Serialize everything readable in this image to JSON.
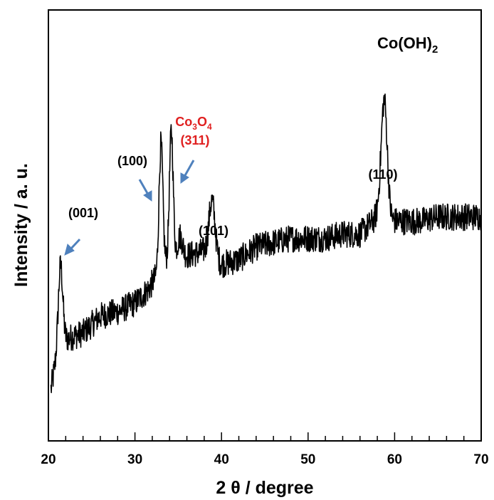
{
  "chart_data": {
    "type": "line",
    "title": "Co(OH)",
    "title_subscript": "2",
    "xlabel": "2 θ / degree",
    "ylabel": "Intensity / a. u.",
    "xlim": [
      20,
      70
    ],
    "ylim": [
      0,
      100
    ],
    "xticks": [
      20,
      30,
      40,
      50,
      60,
      70
    ],
    "xtick_labels": [
      "20",
      "30",
      "40",
      "50",
      "60",
      "70"
    ],
    "minor_xtick_step": 2,
    "y_tick_labels_shown": false,
    "grid": false,
    "legend": "none",
    "line_color": "#000000",
    "baseline_x": [
      20.3,
      21.0,
      21.7,
      22.5,
      24,
      26,
      28,
      30,
      31.5,
      32.4,
      33.4,
      34.5,
      36,
      38,
      40,
      42,
      44,
      46,
      48,
      50,
      52,
      54,
      56,
      57.5,
      58.2,
      59.5,
      61,
      63,
      65,
      67,
      69,
      70
    ],
    "baseline_y": [
      12,
      20,
      23,
      24,
      25,
      29,
      30,
      32,
      35,
      38,
      41,
      42,
      43,
      44,
      41,
      42,
      45,
      46,
      47,
      47,
      47,
      48,
      48,
      51,
      53,
      51,
      51,
      51,
      52,
      52,
      52,
      52
    ],
    "peaks": [
      {
        "x": 21.4,
        "height": 19,
        "width": 0.25
      },
      {
        "x": 33.0,
        "height": 29,
        "width": 0.22
      },
      {
        "x": 34.2,
        "height": 30,
        "width": 0.22
      },
      {
        "x": 35.2,
        "height": 5,
        "width": 0.3
      },
      {
        "x": 38.9,
        "height": 13,
        "width": 0.35
      },
      {
        "x": 58.8,
        "height": 27,
        "width": 0.35
      }
    ],
    "noise_amplitude": 3.2,
    "annotations": [
      {
        "label": "(001)",
        "x": 21.4,
        "color": "#000000"
      },
      {
        "label": "(100)",
        "x": 33.0,
        "color": "#000000"
      },
      {
        "label_main": "Co",
        "label_sub1": "3",
        "label_mid": "O",
        "label_sub2": "4",
        "label_index": "(311)",
        "x": 34.2,
        "color": "#e02020"
      },
      {
        "label": "(101)",
        "x": 38.9,
        "color": "#000000"
      },
      {
        "label": "(110)",
        "x": 58.8,
        "color": "#000000"
      }
    ],
    "arrow_color": "#4f81bd"
  }
}
